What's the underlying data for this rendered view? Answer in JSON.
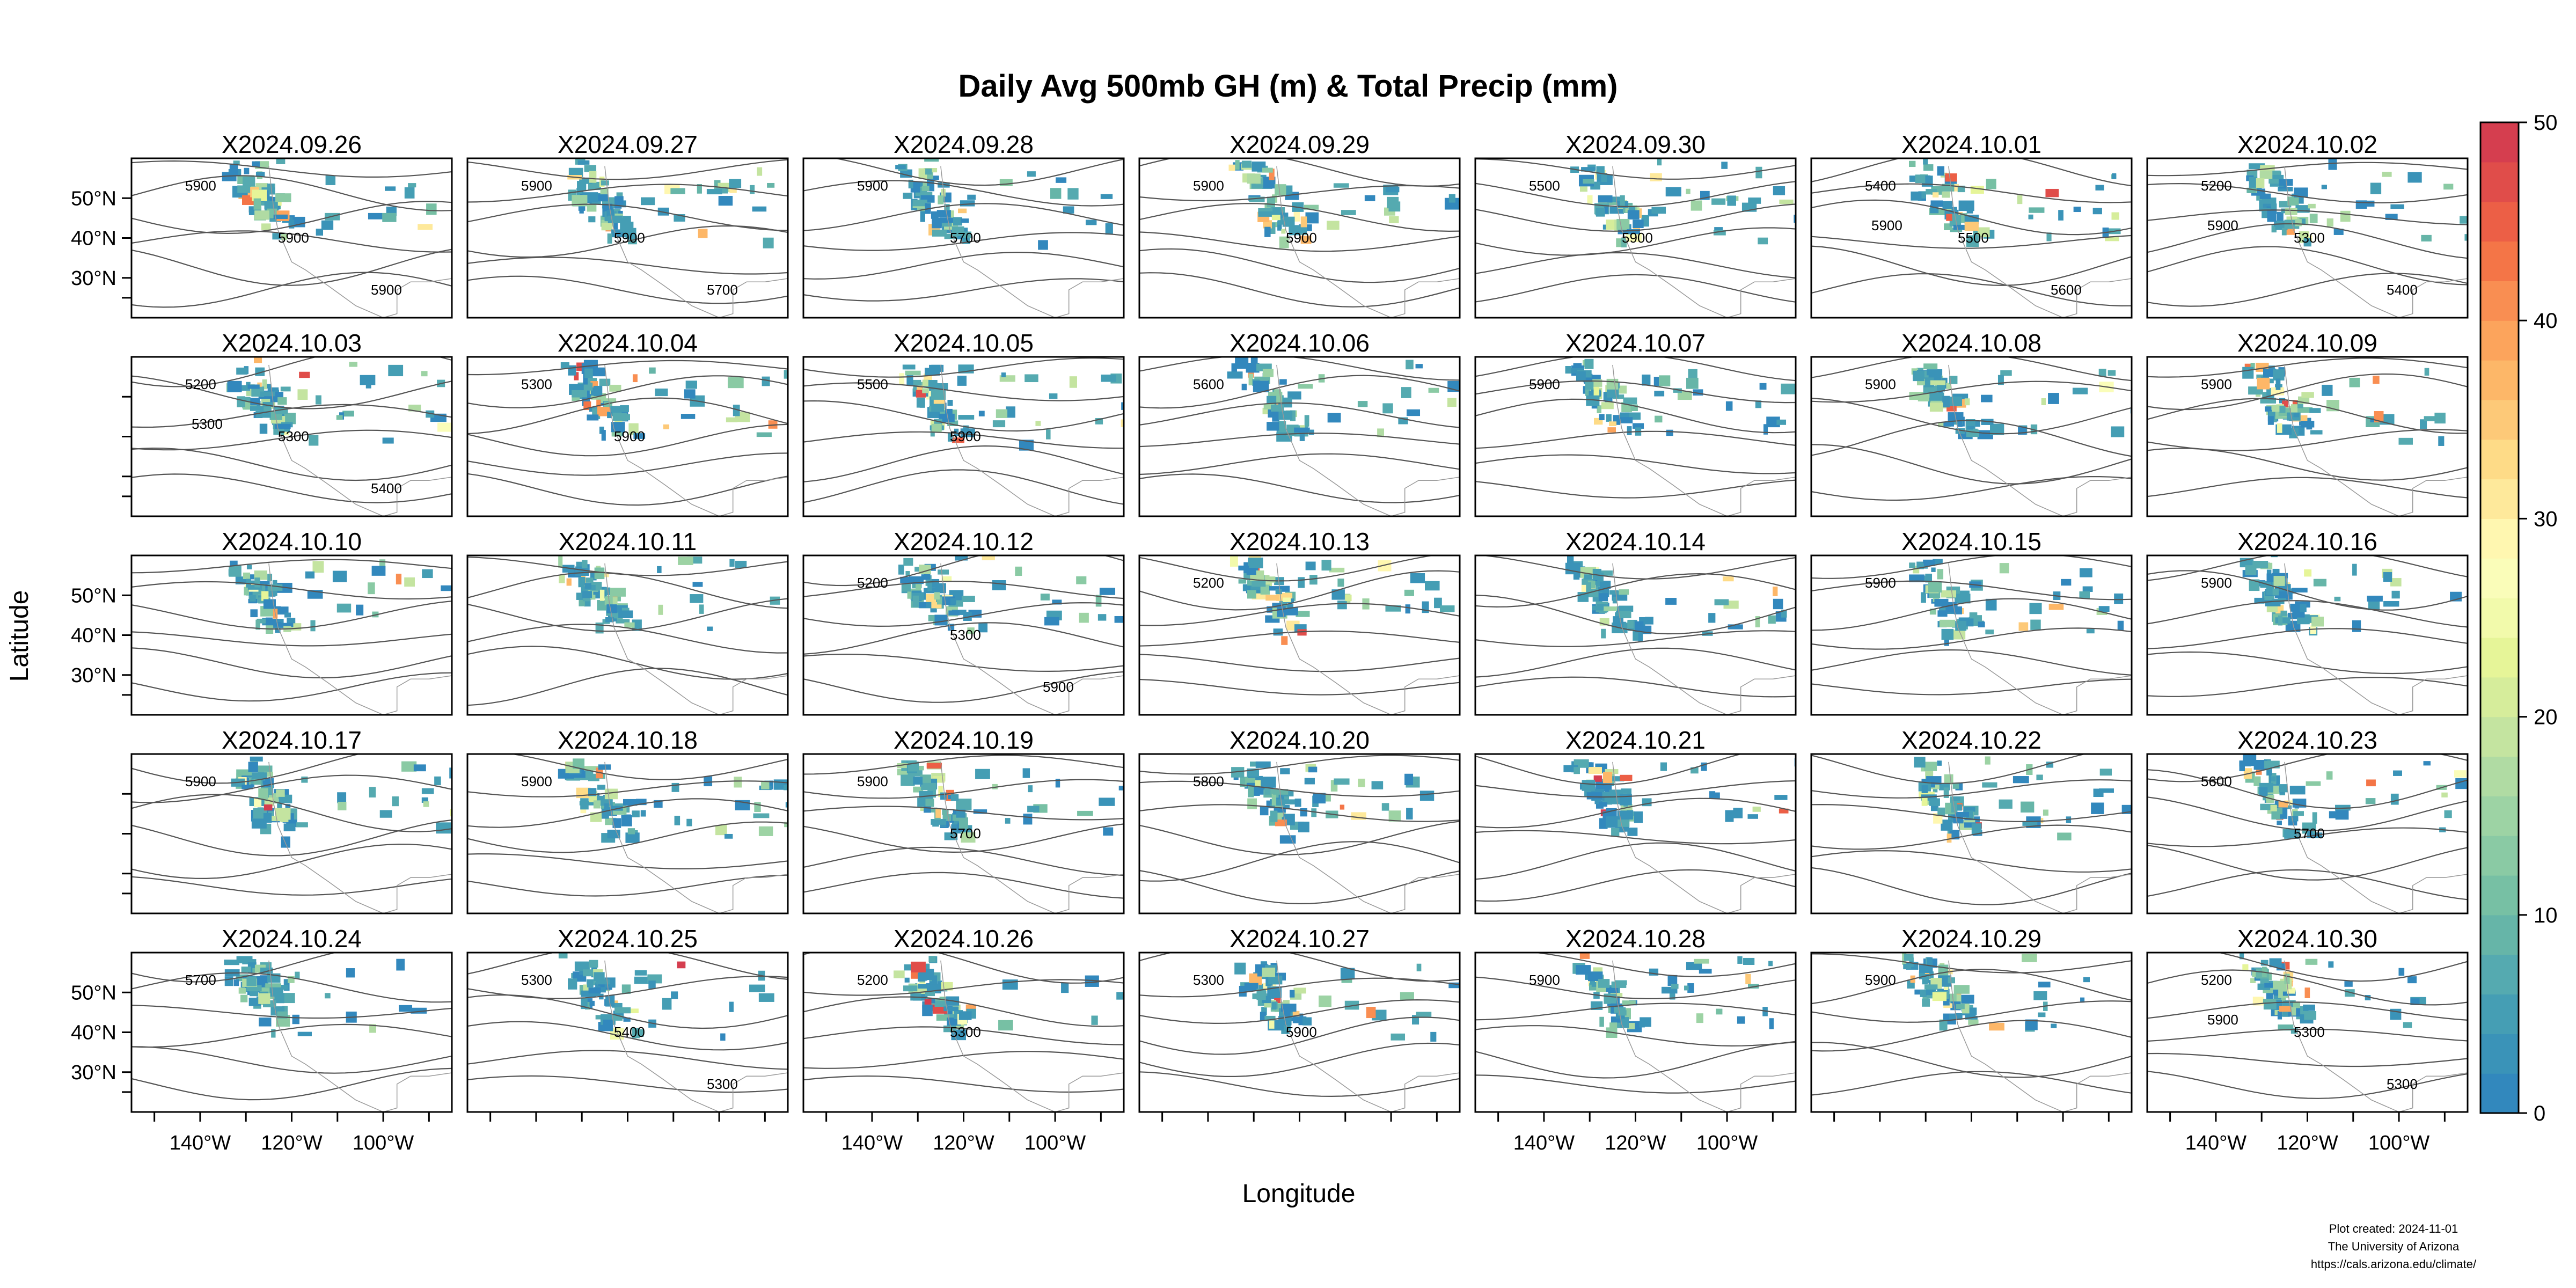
{
  "title": "Daily Avg 500mb GH (m) & Total Precip (mm)",
  "xlabel": "Longitude",
  "ylabel": "Latitude",
  "footer": {
    "line1": "Plot created: 2024-11-01",
    "line2": "The University of Arizona",
    "line3": "https://cals.arizona.edu/climate/"
  },
  "chart_data": {
    "type": "heatmap",
    "title": "Daily Avg 500mb GH (m) & Total Precip (mm)",
    "xlabel": "Longitude",
    "ylabel": "Latitude",
    "x_ticks": [
      "140°W",
      "120°W",
      "100°W"
    ],
    "x_tick_values": [
      -140,
      -120,
      -100
    ],
    "y_ticks": [
      "50°N",
      "40°N",
      "30°N"
    ],
    "y_tick_values": [
      50,
      40,
      30
    ],
    "xlim": [
      -155,
      -85
    ],
    "ylim": [
      20,
      60
    ],
    "colorbar": {
      "label_values": [
        0,
        10,
        20,
        30,
        40,
        50
      ],
      "labels": [
        "0",
        "10",
        "20",
        "30",
        "40",
        "50"
      ],
      "range": [
        0,
        50
      ],
      "colors": [
        "#3288bd",
        "#3a93b8",
        "#459eb4",
        "#55aab0",
        "#66b5a8",
        "#77c0a4",
        "#8acaa4",
        "#9dd3a4",
        "#b0dba3",
        "#c4e4a0",
        "#d6ed9b",
        "#e6f598",
        "#f2faab",
        "#fafdb9",
        "#fff7b0",
        "#fee99b",
        "#fedb87",
        "#fdc978",
        "#fdb768",
        "#fca45c",
        "#f98e52",
        "#f47547",
        "#ec5f46",
        "#e04d4a",
        "#d53e4f"
      ]
    },
    "panels": [
      {
        "label": "X2024.09.26",
        "contours": [
          "5900",
          "5900",
          "5900"
        ]
      },
      {
        "label": "X2024.09.27",
        "contours": [
          "5900",
          "5900",
          "5700"
        ]
      },
      {
        "label": "X2024.09.28",
        "contours": [
          "5900",
          "5700"
        ]
      },
      {
        "label": "X2024.09.29",
        "contours": [
          "5900",
          "5900"
        ]
      },
      {
        "label": "X2024.09.30",
        "contours": [
          "5500",
          "5900"
        ]
      },
      {
        "label": "X2024.10.01",
        "contours": [
          "5400",
          "5500",
          "5600",
          "5900"
        ]
      },
      {
        "label": "X2024.10.02",
        "contours": [
          "5200",
          "5300",
          "5400",
          "5900"
        ]
      },
      {
        "label": "X2024.10.03",
        "contours": [
          "5200",
          "5300",
          "5400",
          "5300"
        ]
      },
      {
        "label": "X2024.10.04",
        "contours": [
          "5300",
          "5900"
        ]
      },
      {
        "label": "X2024.10.05",
        "contours": [
          "5500",
          "5900"
        ]
      },
      {
        "label": "X2024.10.06",
        "contours": [
          "5600"
        ]
      },
      {
        "label": "X2024.10.07",
        "contours": [
          "5900"
        ]
      },
      {
        "label": "X2024.10.08",
        "contours": [
          "5900"
        ]
      },
      {
        "label": "X2024.10.09",
        "contours": [
          "5900"
        ]
      },
      {
        "label": "X2024.10.10",
        "contours": []
      },
      {
        "label": "X2024.10.11",
        "contours": []
      },
      {
        "label": "X2024.10.12",
        "contours": [
          "5200",
          "5300",
          "5900"
        ]
      },
      {
        "label": "X2024.10.13",
        "contours": [
          "5200"
        ]
      },
      {
        "label": "X2024.10.14",
        "contours": []
      },
      {
        "label": "X2024.10.15",
        "contours": [
          "5900"
        ]
      },
      {
        "label": "X2024.10.16",
        "contours": [
          "5900"
        ]
      },
      {
        "label": "X2024.10.17",
        "contours": [
          "5900"
        ]
      },
      {
        "label": "X2024.10.18",
        "contours": [
          "5900"
        ]
      },
      {
        "label": "X2024.10.19",
        "contours": [
          "5900",
          "5700"
        ]
      },
      {
        "label": "X2024.10.20",
        "contours": [
          "5800"
        ]
      },
      {
        "label": "X2024.10.21",
        "contours": []
      },
      {
        "label": "X2024.10.22",
        "contours": []
      },
      {
        "label": "X2024.10.23",
        "contours": [
          "5600",
          "5700"
        ]
      },
      {
        "label": "X2024.10.24",
        "contours": [
          "5700"
        ]
      },
      {
        "label": "X2024.10.25",
        "contours": [
          "5300",
          "5400",
          "5300"
        ]
      },
      {
        "label": "X2024.10.26",
        "contours": [
          "5200",
          "5300"
        ]
      },
      {
        "label": "X2024.10.27",
        "contours": [
          "5300",
          "5900"
        ]
      },
      {
        "label": "X2024.10.28",
        "contours": [
          "5900"
        ]
      },
      {
        "label": "X2024.10.29",
        "contours": [
          "5900"
        ]
      },
      {
        "label": "X2024.10.30",
        "contours": [
          "5200",
          "5300",
          "5300",
          "5900"
        ]
      }
    ]
  }
}
